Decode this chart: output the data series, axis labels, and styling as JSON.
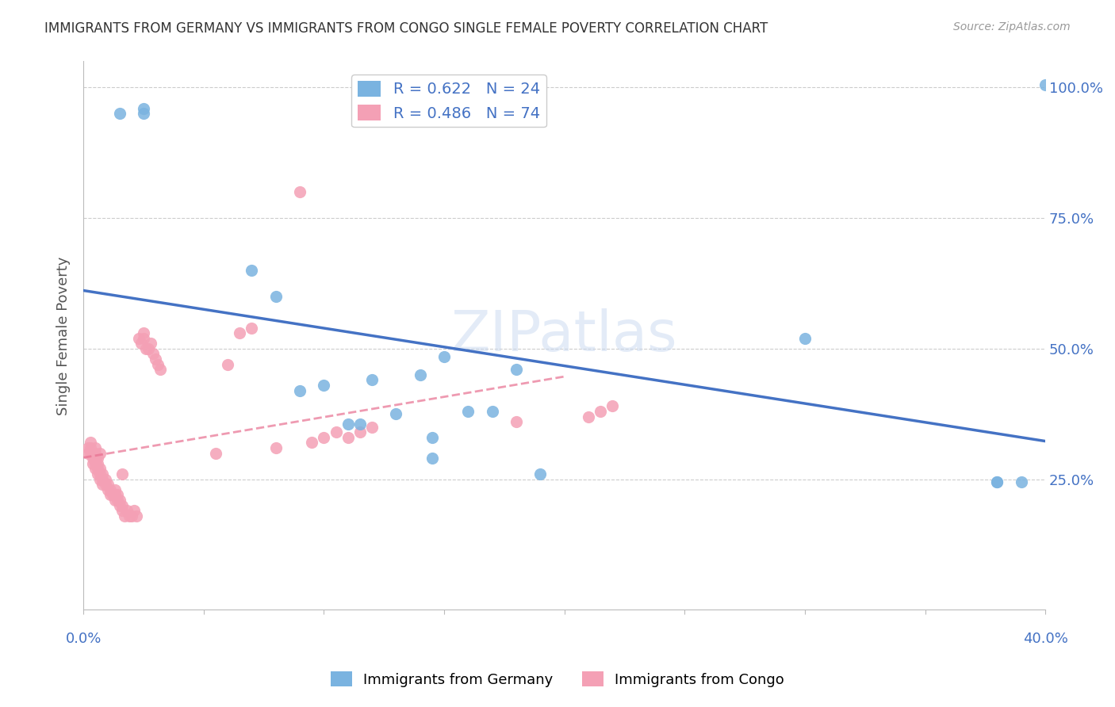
{
  "title": "IMMIGRANTS FROM GERMANY VS IMMIGRANTS FROM CONGO SINGLE FEMALE POVERTY CORRELATION CHART",
  "source": "Source: ZipAtlas.com",
  "ylabel": "Single Female Poverty",
  "ytick_values": [
    0.25,
    0.5,
    0.75,
    1.0
  ],
  "ytick_labels": [
    "25.0%",
    "50.0%",
    "75.0%",
    "100.0%"
  ],
  "legend_germany": "R = 0.622   N = 24",
  "legend_congo": "R = 0.486   N = 74",
  "germany_color": "#7ab3e0",
  "congo_color": "#f4a0b5",
  "germany_line_color": "#4472c4",
  "congo_line_color": "#e87090",
  "axis_label_color": "#4472c4",
  "title_color": "#333333",
  "background_color": "#ffffff",
  "watermark_text": "ZIPatlas",
  "germany_scatter_x": [
    0.015,
    0.025,
    0.025,
    0.07,
    0.08,
    0.09,
    0.1,
    0.11,
    0.115,
    0.12,
    0.13,
    0.14,
    0.145,
    0.145,
    0.15,
    0.16,
    0.17,
    0.18,
    0.19,
    0.3,
    0.38,
    0.38,
    0.39,
    0.4
  ],
  "germany_scatter_y": [
    0.95,
    0.95,
    0.96,
    0.65,
    0.6,
    0.42,
    0.43,
    0.355,
    0.355,
    0.44,
    0.375,
    0.45,
    0.33,
    0.29,
    0.485,
    0.38,
    0.38,
    0.46,
    0.26,
    0.52,
    0.245,
    0.245,
    0.245,
    1.005
  ],
  "congo_scatter_x": [
    0.002,
    0.002,
    0.003,
    0.003,
    0.003,
    0.004,
    0.004,
    0.004,
    0.005,
    0.005,
    0.005,
    0.005,
    0.005,
    0.006,
    0.006,
    0.006,
    0.006,
    0.007,
    0.007,
    0.007,
    0.007,
    0.008,
    0.008,
    0.008,
    0.009,
    0.009,
    0.01,
    0.01,
    0.011,
    0.011,
    0.012,
    0.013,
    0.013,
    0.013,
    0.014,
    0.014,
    0.015,
    0.015,
    0.016,
    0.016,
    0.016,
    0.017,
    0.018,
    0.019,
    0.02,
    0.021,
    0.022,
    0.023,
    0.024,
    0.025,
    0.025,
    0.026,
    0.027,
    0.028,
    0.029,
    0.03,
    0.031,
    0.032,
    0.055,
    0.06,
    0.065,
    0.07,
    0.08,
    0.09,
    0.095,
    0.1,
    0.105,
    0.11,
    0.115,
    0.12,
    0.18,
    0.21,
    0.215,
    0.22
  ],
  "congo_scatter_y": [
    0.3,
    0.31,
    0.3,
    0.31,
    0.32,
    0.28,
    0.29,
    0.3,
    0.27,
    0.28,
    0.29,
    0.3,
    0.31,
    0.26,
    0.27,
    0.28,
    0.29,
    0.25,
    0.26,
    0.27,
    0.3,
    0.24,
    0.25,
    0.26,
    0.24,
    0.25,
    0.23,
    0.24,
    0.22,
    0.23,
    0.22,
    0.21,
    0.22,
    0.23,
    0.21,
    0.22,
    0.2,
    0.21,
    0.19,
    0.2,
    0.26,
    0.18,
    0.19,
    0.18,
    0.18,
    0.19,
    0.18,
    0.52,
    0.51,
    0.52,
    0.53,
    0.5,
    0.5,
    0.51,
    0.49,
    0.48,
    0.47,
    0.46,
    0.3,
    0.47,
    0.53,
    0.54,
    0.31,
    0.8,
    0.32,
    0.33,
    0.34,
    0.33,
    0.34,
    0.35,
    0.36,
    0.37,
    0.38,
    0.39
  ]
}
